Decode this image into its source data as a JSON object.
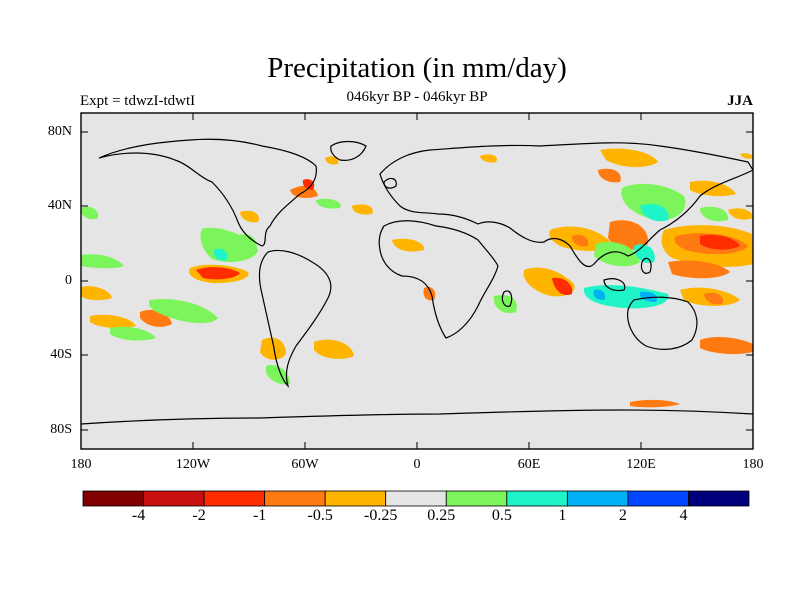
{
  "title": "Precipitation (in mm/day)",
  "subtitle": "046kyr BP - 046kyr BP",
  "expt": "Expt = tdwzI-tdwtI",
  "season": "JJA",
  "lat_labels": [
    "80N",
    "40N",
    "0",
    "40S",
    "80S"
  ],
  "lon_labels": [
    "180",
    "120W",
    "60W",
    "0",
    "60E",
    "120E",
    "180"
  ],
  "colorbar": {
    "labels": [
      "-4",
      "-2",
      "-1",
      "-0.5",
      "-0.25",
      "0.25",
      "0.5",
      "1",
      "2",
      "4"
    ],
    "colors": [
      "#800000",
      "#c81010",
      "#ff2c00",
      "#ff7a10",
      "#ffb400",
      "#e5e5e5",
      "#7cf45c",
      "#1ef4c8",
      "#00b2f5",
      "#0046ff",
      "#00007c"
    ]
  },
  "map": {
    "background": "#e5e5e5"
  }
}
